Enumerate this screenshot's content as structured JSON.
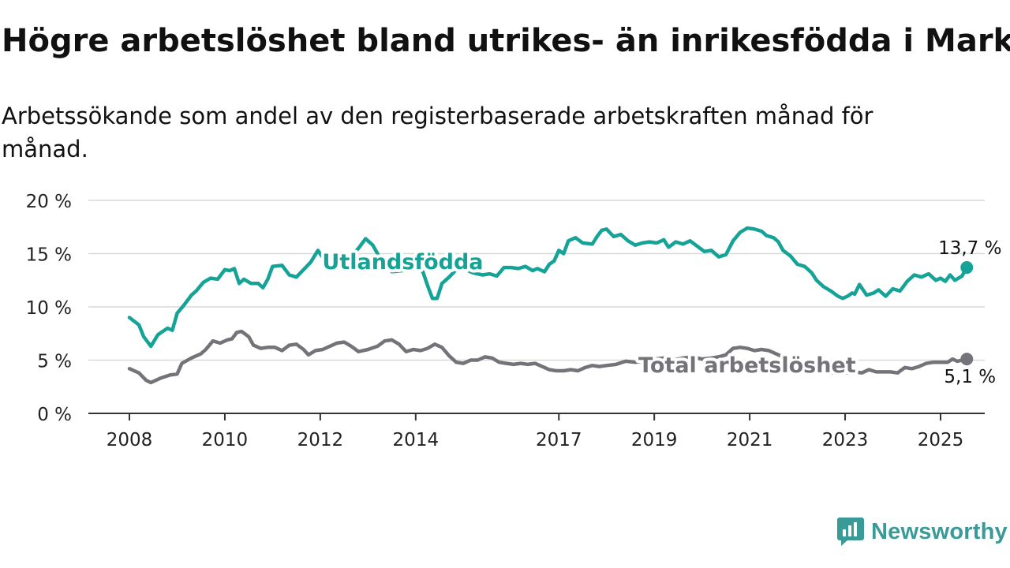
{
  "header": {
    "title": "Högre arbetslöshet bland utrikes- än inrikesfödda i Mark",
    "subtitle": "Arbetssökande som andel av den registerbaserade arbetskraften månad för månad."
  },
  "brand": {
    "name": "Newsworthy",
    "color": "#3a9a98",
    "icon": "newsworthy-logo-icon"
  },
  "chart_data": {
    "type": "line",
    "ylim": [
      0,
      20
    ],
    "xlim": [
      2007.75,
      2025.9
    ],
    "y_ticks": [
      {
        "value": 0,
        "label": "0 %"
      },
      {
        "value": 5,
        "label": "5 %"
      },
      {
        "value": 10,
        "label": "10 %"
      },
      {
        "value": 15,
        "label": "15 %"
      },
      {
        "value": 20,
        "label": "20 %"
      }
    ],
    "x_ticks": [
      {
        "value": 2008,
        "label": "2008"
      },
      {
        "value": 2010,
        "label": "2010"
      },
      {
        "value": 2012,
        "label": "2012"
      },
      {
        "value": 2014,
        "label": "2014"
      },
      {
        "value": 2017,
        "label": "2017"
      },
      {
        "value": 2019,
        "label": "2019"
      },
      {
        "value": 2021,
        "label": "2021"
      },
      {
        "value": 2023,
        "label": "2023"
      },
      {
        "value": 2025,
        "label": "2025"
      }
    ],
    "grid": "horizontal",
    "series": [
      {
        "name": "Utlandsfödda",
        "color": "#14a396",
        "label_at": 2013.1,
        "end_label": "13,7 %",
        "points": [
          [
            2008.0,
            9.0
          ],
          [
            2008.2,
            8.3
          ],
          [
            2008.3,
            7.2
          ],
          [
            2008.45,
            6.3
          ],
          [
            2008.6,
            7.4
          ],
          [
            2008.8,
            8.0
          ],
          [
            2008.9,
            7.8
          ],
          [
            2009.0,
            9.4
          ],
          [
            2009.15,
            10.2
          ],
          [
            2009.3,
            11.1
          ],
          [
            2009.4,
            11.5
          ],
          [
            2009.55,
            12.3
          ],
          [
            2009.7,
            12.7
          ],
          [
            2009.85,
            12.6
          ],
          [
            2010.0,
            13.5
          ],
          [
            2010.1,
            13.4
          ],
          [
            2010.2,
            13.6
          ],
          [
            2010.3,
            12.2
          ],
          [
            2010.4,
            12.6
          ],
          [
            2010.55,
            12.2
          ],
          [
            2010.7,
            12.2
          ],
          [
            2010.8,
            11.8
          ],
          [
            2010.9,
            12.6
          ],
          [
            2011.0,
            13.8
          ],
          [
            2011.2,
            13.9
          ],
          [
            2011.35,
            13.0
          ],
          [
            2011.5,
            12.8
          ],
          [
            2011.65,
            13.5
          ],
          [
            2011.8,
            14.2
          ],
          [
            2011.95,
            15.3
          ],
          [
            2012.1,
            14.3
          ],
          [
            2012.3,
            14.5
          ],
          [
            2012.5,
            14.5
          ],
          [
            2012.65,
            14.8
          ],
          [
            2012.8,
            15.5
          ],
          [
            2012.95,
            16.4
          ],
          [
            2013.1,
            15.8
          ],
          [
            2013.3,
            14.2
          ],
          [
            2013.5,
            13.3
          ],
          [
            2013.7,
            13.4
          ],
          [
            2013.9,
            13.5
          ],
          [
            2014.0,
            13.8
          ],
          [
            2014.15,
            13.3
          ],
          [
            2014.25,
            12.0
          ],
          [
            2014.35,
            10.8
          ],
          [
            2014.45,
            10.8
          ],
          [
            2014.55,
            12.2
          ],
          [
            2014.7,
            12.8
          ],
          [
            2014.85,
            13.5
          ],
          [
            2015.0,
            13.6
          ],
          [
            2015.2,
            13.2
          ],
          [
            2015.4,
            13.0
          ],
          [
            2015.55,
            13.1
          ],
          [
            2015.7,
            12.9
          ],
          [
            2015.85,
            13.7
          ],
          [
            2016.0,
            13.7
          ],
          [
            2016.15,
            13.6
          ],
          [
            2016.3,
            13.8
          ],
          [
            2016.45,
            13.4
          ],
          [
            2016.55,
            13.6
          ],
          [
            2016.7,
            13.3
          ],
          [
            2016.8,
            14.0
          ],
          [
            2016.9,
            14.3
          ],
          [
            2017.0,
            15.3
          ],
          [
            2017.1,
            15.0
          ],
          [
            2017.2,
            16.2
          ],
          [
            2017.35,
            16.5
          ],
          [
            2017.5,
            16.0
          ],
          [
            2017.7,
            15.9
          ],
          [
            2017.8,
            16.6
          ],
          [
            2017.9,
            17.2
          ],
          [
            2018.0,
            17.3
          ],
          [
            2018.15,
            16.6
          ],
          [
            2018.3,
            16.8
          ],
          [
            2018.45,
            16.2
          ],
          [
            2018.6,
            15.8
          ],
          [
            2018.75,
            16.0
          ],
          [
            2018.9,
            16.1
          ],
          [
            2019.05,
            16.0
          ],
          [
            2019.2,
            16.3
          ],
          [
            2019.3,
            15.6
          ],
          [
            2019.45,
            16.1
          ],
          [
            2019.6,
            15.9
          ],
          [
            2019.75,
            16.2
          ],
          [
            2019.9,
            15.7
          ],
          [
            2020.05,
            15.2
          ],
          [
            2020.2,
            15.3
          ],
          [
            2020.35,
            14.7
          ],
          [
            2020.5,
            14.9
          ],
          [
            2020.65,
            16.2
          ],
          [
            2020.8,
            17.0
          ],
          [
            2020.95,
            17.4
          ],
          [
            2021.1,
            17.3
          ],
          [
            2021.25,
            17.1
          ],
          [
            2021.35,
            16.7
          ],
          [
            2021.5,
            16.5
          ],
          [
            2021.6,
            16.1
          ],
          [
            2021.7,
            15.3
          ],
          [
            2021.85,
            14.8
          ],
          [
            2022.0,
            14.0
          ],
          [
            2022.15,
            13.8
          ],
          [
            2022.3,
            13.2
          ],
          [
            2022.4,
            12.5
          ],
          [
            2022.55,
            11.9
          ],
          [
            2022.7,
            11.5
          ],
          [
            2022.85,
            11.0
          ],
          [
            2022.95,
            10.8
          ],
          [
            2023.05,
            11.0
          ],
          [
            2023.15,
            11.3
          ],
          [
            2023.2,
            11.2
          ],
          [
            2023.3,
            12.1
          ],
          [
            2023.45,
            11.1
          ],
          [
            2023.6,
            11.3
          ],
          [
            2023.7,
            11.6
          ],
          [
            2023.85,
            11.0
          ],
          [
            2024.0,
            11.7
          ],
          [
            2024.15,
            11.5
          ],
          [
            2024.3,
            12.4
          ],
          [
            2024.45,
            13.0
          ],
          [
            2024.6,
            12.8
          ],
          [
            2024.75,
            13.1
          ],
          [
            2024.9,
            12.5
          ],
          [
            2025.0,
            12.7
          ],
          [
            2025.1,
            12.4
          ],
          [
            2025.2,
            13.0
          ],
          [
            2025.3,
            12.5
          ],
          [
            2025.45,
            12.9
          ],
          [
            2025.55,
            13.7
          ]
        ]
      },
      {
        "name": "Total arbetslöshet",
        "color": "#75737a",
        "label_at": 2018.7,
        "end_label": "5,1 %",
        "points": [
          [
            2008.0,
            4.2
          ],
          [
            2008.2,
            3.8
          ],
          [
            2008.35,
            3.1
          ],
          [
            2008.45,
            2.9
          ],
          [
            2008.65,
            3.3
          ],
          [
            2008.85,
            3.6
          ],
          [
            2009.0,
            3.7
          ],
          [
            2009.1,
            4.7
          ],
          [
            2009.3,
            5.2
          ],
          [
            2009.5,
            5.6
          ],
          [
            2009.6,
            6.0
          ],
          [
            2009.75,
            6.8
          ],
          [
            2009.9,
            6.6
          ],
          [
            2010.05,
            6.9
          ],
          [
            2010.15,
            7.0
          ],
          [
            2010.25,
            7.6
          ],
          [
            2010.35,
            7.7
          ],
          [
            2010.5,
            7.2
          ],
          [
            2010.6,
            6.4
          ],
          [
            2010.75,
            6.1
          ],
          [
            2010.9,
            6.2
          ],
          [
            2011.05,
            6.2
          ],
          [
            2011.2,
            5.9
          ],
          [
            2011.35,
            6.4
          ],
          [
            2011.5,
            6.5
          ],
          [
            2011.65,
            6.0
          ],
          [
            2011.75,
            5.5
          ],
          [
            2011.9,
            5.9
          ],
          [
            2012.05,
            6.0
          ],
          [
            2012.2,
            6.3
          ],
          [
            2012.35,
            6.6
          ],
          [
            2012.5,
            6.7
          ],
          [
            2012.65,
            6.3
          ],
          [
            2012.8,
            5.8
          ],
          [
            2013.0,
            6.0
          ],
          [
            2013.2,
            6.3
          ],
          [
            2013.35,
            6.8
          ],
          [
            2013.5,
            6.9
          ],
          [
            2013.65,
            6.5
          ],
          [
            2013.8,
            5.8
          ],
          [
            2013.95,
            6.0
          ],
          [
            2014.1,
            5.9
          ],
          [
            2014.25,
            6.1
          ],
          [
            2014.4,
            6.5
          ],
          [
            2014.55,
            6.2
          ],
          [
            2014.7,
            5.4
          ],
          [
            2014.85,
            4.8
          ],
          [
            2015.0,
            4.7
          ],
          [
            2015.15,
            5.0
          ],
          [
            2015.3,
            5.0
          ],
          [
            2015.45,
            5.3
          ],
          [
            2015.6,
            5.2
          ],
          [
            2015.75,
            4.8
          ],
          [
            2015.9,
            4.7
          ],
          [
            2016.05,
            4.6
          ],
          [
            2016.2,
            4.7
          ],
          [
            2016.35,
            4.6
          ],
          [
            2016.5,
            4.7
          ],
          [
            2016.65,
            4.4
          ],
          [
            2016.8,
            4.1
          ],
          [
            2016.95,
            4.0
          ],
          [
            2017.1,
            4.0
          ],
          [
            2017.25,
            4.1
          ],
          [
            2017.4,
            4.0
          ],
          [
            2017.55,
            4.3
          ],
          [
            2017.7,
            4.5
          ],
          [
            2017.85,
            4.4
          ],
          [
            2018.0,
            4.5
          ],
          [
            2018.2,
            4.6
          ],
          [
            2018.4,
            4.9
          ],
          [
            2018.6,
            4.8
          ],
          [
            2018.8,
            4.9
          ],
          [
            2019.0,
            5.1
          ],
          [
            2019.2,
            5.2
          ],
          [
            2019.4,
            5.0
          ],
          [
            2019.6,
            5.2
          ],
          [
            2019.8,
            5.3
          ],
          [
            2020.0,
            5.1
          ],
          [
            2020.2,
            5.2
          ],
          [
            2020.35,
            5.3
          ],
          [
            2020.5,
            5.5
          ],
          [
            2020.65,
            6.1
          ],
          [
            2020.8,
            6.2
          ],
          [
            2020.95,
            6.1
          ],
          [
            2021.1,
            5.9
          ],
          [
            2021.25,
            6.0
          ],
          [
            2021.4,
            5.9
          ],
          [
            2021.55,
            5.6
          ],
          [
            2021.7,
            5.3
          ],
          [
            2021.85,
            4.9
          ],
          [
            2022.0,
            4.7
          ],
          [
            2022.15,
            4.6
          ],
          [
            2022.3,
            4.6
          ],
          [
            2022.45,
            4.3
          ],
          [
            2022.6,
            4.0
          ],
          [
            2022.75,
            3.8
          ],
          [
            2022.9,
            3.9
          ],
          [
            2023.05,
            3.8
          ],
          [
            2023.2,
            3.9
          ],
          [
            2023.35,
            3.8
          ],
          [
            2023.5,
            4.1
          ],
          [
            2023.65,
            3.9
          ],
          [
            2023.8,
            3.9
          ],
          [
            2023.95,
            3.9
          ],
          [
            2024.1,
            3.8
          ],
          [
            2024.25,
            4.3
          ],
          [
            2024.4,
            4.2
          ],
          [
            2024.55,
            4.4
          ],
          [
            2024.7,
            4.7
          ],
          [
            2024.85,
            4.8
          ],
          [
            2025.0,
            4.8
          ],
          [
            2025.15,
            4.8
          ],
          [
            2025.25,
            5.1
          ],
          [
            2025.35,
            4.9
          ],
          [
            2025.55,
            5.1
          ]
        ]
      }
    ]
  }
}
